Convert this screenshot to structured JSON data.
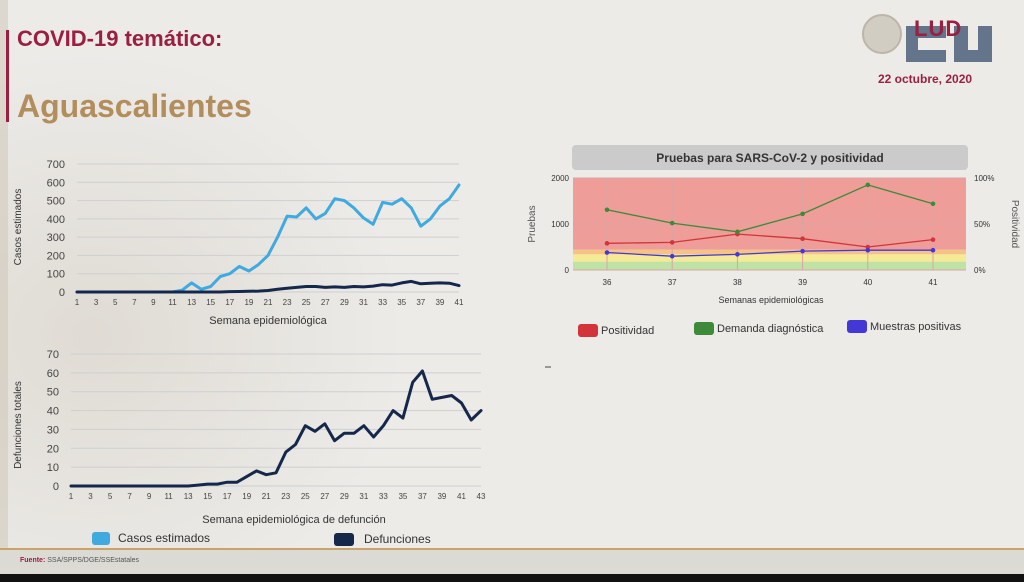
{
  "header": {
    "title": "COVID-19 temático:",
    "subtitle": "Aguascalientes",
    "logo_text": "LUD",
    "date": "22 octubre, 2020"
  },
  "footer": {
    "label": "Fuente:",
    "text": "SSA/SPPS/DGE/SSEstatales"
  },
  "colors": {
    "cases": "#3fa9e0",
    "deaths": "#15274a",
    "positivity": "#d2343a",
    "demand": "#3d8a3a",
    "samples": "#4338d6",
    "accent": "#9a1f40",
    "gold": "#b38e5d"
  },
  "chart_data": [
    {
      "type": "line",
      "ylabel": "Casos estimados",
      "xlabel": "Semana epidemiológica",
      "ylim": [
        0,
        700
      ],
      "yticks": [
        "0",
        "100",
        "200",
        "300",
        "400",
        "500",
        "600",
        "700"
      ],
      "xticks": [
        "1",
        "3",
        "5",
        "7",
        "9",
        "11",
        "13",
        "15",
        "17",
        "19",
        "21",
        "23",
        "25",
        "27",
        "29",
        "31",
        "33",
        "35",
        "37",
        "39",
        "41"
      ],
      "grid": "horizontal",
      "series": [
        {
          "name": "Casos estimados",
          "x": [
            1,
            2,
            3,
            4,
            5,
            6,
            7,
            8,
            9,
            10,
            11,
            12,
            13,
            14,
            15,
            16,
            17,
            18,
            19,
            20,
            21,
            22,
            23,
            24,
            25,
            26,
            27,
            28,
            29,
            30,
            31,
            32,
            33,
            34,
            35,
            36,
            37,
            38,
            39,
            40,
            41
          ],
          "values": [
            0,
            0,
            0,
            0,
            0,
            0,
            0,
            0,
            0,
            0,
            0,
            10,
            50,
            15,
            30,
            85,
            100,
            140,
            115,
            150,
            200,
            300,
            415,
            410,
            460,
            400,
            430,
            510,
            500,
            460,
            405,
            370,
            490,
            480,
            510,
            460,
            360,
            400,
            470,
            510,
            585
          ]
        },
        {
          "name": "Defunciones",
          "x": [
            1,
            2,
            3,
            4,
            5,
            6,
            7,
            8,
            9,
            10,
            11,
            12,
            13,
            14,
            15,
            16,
            17,
            18,
            19,
            20,
            21,
            22,
            23,
            24,
            25,
            26,
            27,
            28,
            29,
            30,
            31,
            32,
            33,
            34,
            35,
            36,
            37,
            38,
            39,
            40,
            41
          ],
          "values": [
            0,
            0,
            0,
            0,
            0,
            0,
            0,
            0,
            0,
            0,
            0,
            0,
            0,
            0,
            0,
            0,
            2,
            3,
            4,
            5,
            8,
            15,
            20,
            25,
            30,
            30,
            25,
            28,
            25,
            30,
            28,
            32,
            40,
            38,
            50,
            58,
            45,
            48,
            50,
            48,
            35
          ]
        }
      ]
    },
    {
      "type": "line",
      "ylabel": "Defunciones totales",
      "xlabel": "Semana epidemiológica de defunción",
      "ylim": [
        0,
        70
      ],
      "yticks": [
        "0",
        "10",
        "20",
        "30",
        "40",
        "50",
        "60",
        "70"
      ],
      "xticks": [
        "1",
        "3",
        "5",
        "7",
        "9",
        "11",
        "13",
        "15",
        "17",
        "19",
        "21",
        "23",
        "25",
        "27",
        "29",
        "31",
        "33",
        "35",
        "37",
        "39",
        "41",
        "43"
      ],
      "grid": "horizontal",
      "series": [
        {
          "name": "Defunciones",
          "x": [
            1,
            2,
            3,
            4,
            5,
            6,
            7,
            8,
            9,
            10,
            11,
            12,
            13,
            14,
            15,
            16,
            17,
            18,
            19,
            20,
            21,
            22,
            23,
            24,
            25,
            26,
            27,
            28,
            29,
            30,
            31,
            32,
            33,
            34,
            35,
            36,
            37,
            38,
            39,
            40,
            41,
            42,
            43
          ],
          "values": [
            0,
            0,
            0,
            0,
            0,
            0,
            0,
            0,
            0,
            0,
            0,
            0,
            0,
            0.5,
            1,
            1,
            2,
            2,
            5,
            8,
            6,
            7,
            18,
            22,
            32,
            29,
            33,
            24,
            28,
            28,
            32,
            26,
            32,
            40,
            36,
            55,
            61,
            46,
            47,
            48,
            44,
            35,
            40
          ]
        }
      ]
    },
    {
      "type": "line",
      "title": "Pruebas para SARS-CoV-2 y positividad",
      "xlabel": "Semanas epidemiológicas",
      "ylabel": "Pruebas",
      "ylabel_right": "Positividad",
      "categories": [
        "36",
        "37",
        "38",
        "39",
        "40",
        "41"
      ],
      "ylim": [
        0,
        2000
      ],
      "yticks": [
        "0",
        "1000",
        "2000"
      ],
      "yticks_right": [
        "0%",
        "50%",
        "100%"
      ],
      "series": [
        {
          "name": "Positividad",
          "axis": "right",
          "values": [
            29,
            30,
            39,
            34,
            25,
            33
          ]
        },
        {
          "name": "Demanda diagnóstica",
          "axis": "left",
          "values": [
            1310,
            1020,
            830,
            1220,
            1850,
            1440
          ]
        },
        {
          "name": "Muestras positivas",
          "axis": "left",
          "values": [
            380,
            300,
            340,
            410,
            430,
            430
          ]
        }
      ]
    }
  ],
  "legend_left": {
    "cases": "Casos estimados",
    "deaths": "Defunciones"
  },
  "legend_right": {
    "positivity": "Positividad",
    "demand": "Demanda diagnóstica",
    "samples": "Muestras positivas"
  }
}
